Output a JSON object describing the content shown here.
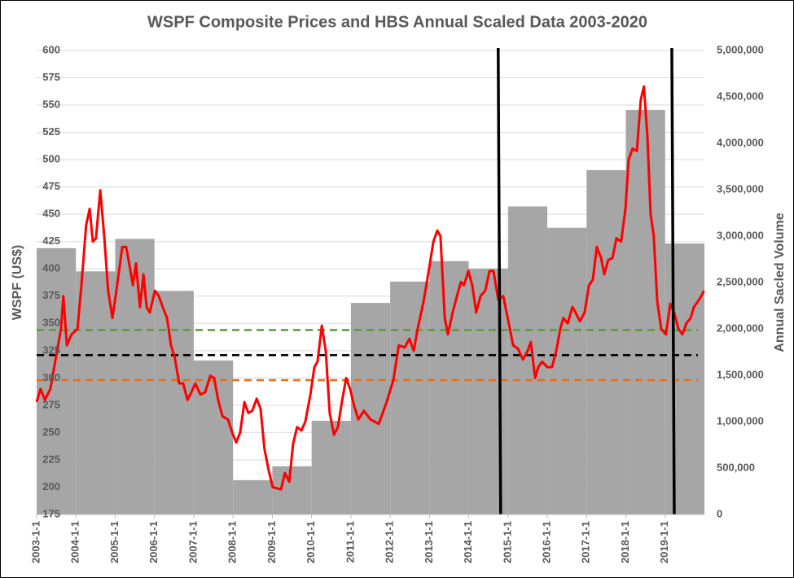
{
  "chart_data": {
    "type": "line",
    "title": "WSPF Composite Prices and HBS Annual Scaled Data 2003-2020",
    "ylabel": "WSPF (US$)",
    "y2label": "Annual Sacled Volume",
    "xlim": [
      2003,
      2020
    ],
    "xticks": [
      {
        "value": 2003,
        "label": "2003-1-1"
      },
      {
        "value": 2004,
        "label": "2004-1-1"
      },
      {
        "value": 2005,
        "label": "2005-1-1"
      },
      {
        "value": 2006,
        "label": "2006-1-1"
      },
      {
        "value": 2007,
        "label": "2007-1-1"
      },
      {
        "value": 2008,
        "label": "2008-1-1"
      },
      {
        "value": 2009,
        "label": "2009-1-1"
      },
      {
        "value": 2010,
        "label": "2010-1-1"
      },
      {
        "value": 2011,
        "label": "2011-1-1"
      },
      {
        "value": 2012,
        "label": "2012-1-1"
      },
      {
        "value": 2013,
        "label": "2013-1-1"
      },
      {
        "value": 2014,
        "label": "2014-1-1"
      },
      {
        "value": 2015,
        "label": "2015-1-1"
      },
      {
        "value": 2016,
        "label": "2016-1-1"
      },
      {
        "value": 2017,
        "label": "2017-1-1"
      },
      {
        "value": 2018,
        "label": "2018-1-1"
      },
      {
        "value": 2019,
        "label": "2019-1-1"
      }
    ],
    "ylim": [
      175,
      600
    ],
    "yticks": [
      175,
      200,
      225,
      250,
      275,
      300,
      325,
      350,
      375,
      400,
      425,
      450,
      475,
      500,
      525,
      550,
      575,
      600
    ],
    "y2lim": [
      0,
      5000000
    ],
    "y2ticks": [
      0,
      {
        "value": 500000,
        "label": "500,000"
      },
      {
        "value": 1000000,
        "label": "1,000,000"
      },
      {
        "value": 1500000,
        "label": "1,500,000"
      },
      {
        "value": 2000000,
        "label": "2,000,000"
      },
      {
        "value": 2500000,
        "label": "2,500,000"
      },
      {
        "value": 3000000,
        "label": "3,000,000"
      },
      {
        "value": 3500000,
        "label": "3,500,000"
      },
      {
        "value": 4000000,
        "label": "4,000,000"
      },
      {
        "value": 4500000,
        "label": "4,500,000"
      },
      {
        "value": 5000000,
        "label": "5,000,000"
      }
    ],
    "grid": true,
    "series": [
      {
        "type": "step-area",
        "axis": "y2",
        "color": "#a6a6a6",
        "x": [
          2003,
          2004,
          2005,
          2006,
          2007,
          2008,
          2009,
          2010,
          2011,
          2012,
          2013,
          2014,
          2015,
          2016,
          2017,
          2018,
          2019
        ],
        "values": [
          2870000,
          2620000,
          2970000,
          2410000,
          1660000,
          370000,
          520000,
          1010000,
          2280000,
          2510000,
          2730000,
          2650000,
          3320000,
          3090000,
          3710000,
          4360000,
          2920000
        ]
      },
      {
        "type": "line",
        "axis": "y",
        "color": "#ff0000",
        "x": [
          2003.0,
          2003.1,
          2003.21,
          2003.35,
          2003.52,
          2003.62,
          2003.68,
          2003.77,
          2003.89,
          2004.04,
          2004.14,
          2004.26,
          2004.35,
          2004.43,
          2004.51,
          2004.62,
          2004.72,
          2004.82,
          2004.93,
          2005.03,
          2005.18,
          2005.28,
          2005.38,
          2005.45,
          2005.53,
          2005.63,
          2005.72,
          2005.8,
          2005.88,
          2006.01,
          2006.11,
          2006.21,
          2006.32,
          2006.42,
          2006.52,
          2006.63,
          2006.73,
          2006.84,
          2006.94,
          2007.04,
          2007.17,
          2007.29,
          2007.42,
          2007.52,
          2007.62,
          2007.73,
          2007.87,
          2007.98,
          2008.08,
          2008.18,
          2008.29,
          2008.39,
          2008.49,
          2008.6,
          2008.7,
          2008.8,
          2008.91,
          2009.01,
          2009.12,
          2009.22,
          2009.32,
          2009.43,
          2009.53,
          2009.63,
          2009.74,
          2009.84,
          2009.97,
          2010.07,
          2010.15,
          2010.26,
          2010.36,
          2010.46,
          2010.57,
          2010.67,
          2010.77,
          2010.88,
          2010.98,
          2011.08,
          2011.19,
          2011.33,
          2011.5,
          2011.71,
          2011.91,
          2012.08,
          2012.22,
          2012.37,
          2012.49,
          2012.6,
          2012.7,
          2012.85,
          2012.99,
          2013.1,
          2013.2,
          2013.28,
          2013.39,
          2013.47,
          2013.59,
          2013.7,
          2013.8,
          2013.88,
          2013.99,
          2014.09,
          2014.19,
          2014.3,
          2014.42,
          2014.53,
          2014.63,
          2014.75,
          2014.88,
          2015.02,
          2015.13,
          2015.25,
          2015.38,
          2015.5,
          2015.58,
          2015.69,
          2015.77,
          2015.87,
          2016.0,
          2016.12,
          2016.23,
          2016.33,
          2016.41,
          2016.52,
          2016.64,
          2016.72,
          2016.83,
          2016.95,
          2017.06,
          2017.16,
          2017.26,
          2017.37,
          2017.45,
          2017.55,
          2017.66,
          2017.76,
          2017.88,
          2017.99,
          2018.07,
          2018.17,
          2018.28,
          2018.38,
          2018.46,
          2018.55,
          2018.63,
          2018.71,
          2018.8,
          2018.9,
          2019.02,
          2019.13,
          2019.23,
          2019.34,
          2019.44,
          2019.54,
          2019.65,
          2019.73,
          2019.83,
          2019.92,
          2019.99
        ],
        "values": [
          278,
          290,
          280,
          290,
          325,
          345,
          375,
          330,
          340,
          345,
          385,
          440,
          455,
          425,
          428,
          472,
          430,
          380,
          355,
          380,
          420,
          420,
          400,
          385,
          405,
          365,
          395,
          365,
          360,
          380,
          375,
          365,
          355,
          330,
          318,
          295,
          295,
          280,
          287,
          295,
          285,
          287,
          302,
          300,
          280,
          265,
          262,
          250,
          241,
          250,
          278,
          268,
          270,
          281,
          272,
          235,
          215,
          200,
          199,
          198,
          213,
          205,
          240,
          255,
          252,
          260,
          285,
          310,
          315,
          348,
          325,
          268,
          248,
          255,
          278,
          300,
          290,
          275,
          262,
          270,
          262,
          258,
          278,
          298,
          330,
          328,
          336,
          325,
          345,
          370,
          400,
          425,
          435,
          430,
          355,
          340,
          360,
          375,
          388,
          385,
          398,
          385,
          360,
          375,
          380,
          398,
          398,
          372,
          375,
          350,
          330,
          327,
          317,
          325,
          333,
          300,
          310,
          315,
          310,
          310,
          325,
          345,
          355,
          350,
          365,
          360,
          352,
          360,
          385,
          390,
          420,
          410,
          395,
          408,
          410,
          428,
          425,
          455,
          500,
          510,
          508,
          555,
          567,
          520,
          450,
          430,
          370,
          345,
          340,
          368,
          360,
          345,
          340,
          350,
          355,
          365,
          370,
          375,
          380
        ]
      }
    ],
    "hlines": [
      {
        "value": 344,
        "color": "#5b9e2f",
        "style": "dashed"
      },
      {
        "value": 321,
        "color": "#000000",
        "style": "dashed"
      },
      {
        "value": 298,
        "color": "#e0701f",
        "style": "dashed"
      }
    ],
    "vlines": [
      {
        "value": 2014.75,
        "color": "#000000"
      },
      {
        "value": 2019.17,
        "color": "#000000"
      }
    ]
  }
}
